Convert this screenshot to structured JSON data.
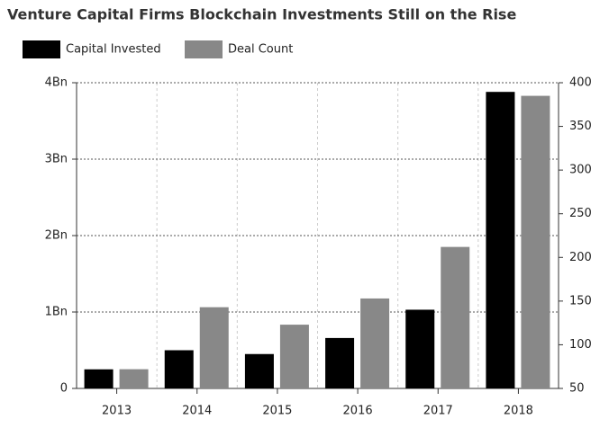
{
  "chart_data": {
    "type": "bar",
    "title": "Venture Capital Firms Blockchain Investments Still on the Rise",
    "categories": [
      "2013",
      "2014",
      "2015",
      "2016",
      "2017",
      "2018"
    ],
    "series": [
      {
        "name": "Capital Invested",
        "color": "#000000",
        "values": [
          0.25,
          0.5,
          0.45,
          0.66,
          1.03,
          3.88
        ]
      },
      {
        "name": "Deal Count",
        "color": "#888888",
        "axis": "y2",
        "values": [
          72,
          143,
          123,
          153,
          212,
          385
        ]
      }
    ],
    "ylim": [
      0,
      4
    ],
    "yticks": [
      0,
      {
        "value": 1,
        "label": "1Bn"
      },
      {
        "value": 2,
        "label": "2Bn"
      },
      {
        "value": 3,
        "label": "3Bn"
      },
      {
        "value": 4,
        "label": "4Bn"
      }
    ],
    "y2lim": [
      50,
      400
    ],
    "y2ticks": [
      50,
      100,
      150,
      200,
      250,
      300,
      350,
      400
    ],
    "grid": true,
    "legend": "top-left"
  }
}
